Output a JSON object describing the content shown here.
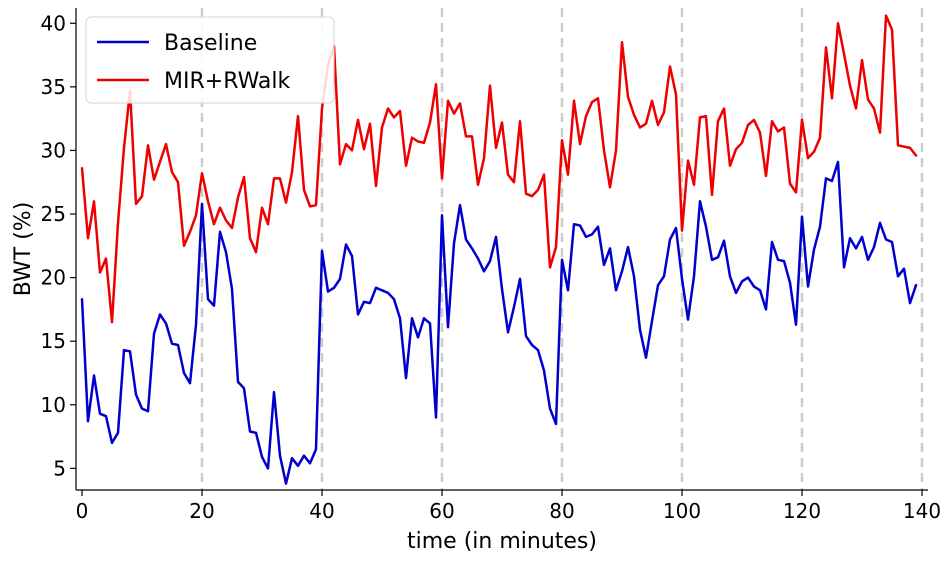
{
  "chart_data": {
    "type": "line",
    "xlabel": "time (in minutes)",
    "ylabel": "BWT (%)",
    "xlim": [
      -1,
      141
    ],
    "ylim": [
      3.3,
      41.2
    ],
    "xticks": [
      0,
      20,
      40,
      60,
      80,
      100,
      120,
      140
    ],
    "yticks": [
      5,
      10,
      15,
      20,
      25,
      30,
      35,
      40
    ],
    "vlines": [
      20,
      40,
      60,
      80,
      100,
      120,
      140
    ],
    "vline_color": "#cccccc",
    "legend": {
      "placement": "top-left"
    },
    "grid": false,
    "x": [
      0,
      1,
      2,
      3,
      4,
      5,
      6,
      7,
      8,
      9,
      10,
      11,
      12,
      13,
      14,
      15,
      16,
      17,
      18,
      19,
      20,
      21,
      22,
      23,
      24,
      25,
      26,
      27,
      28,
      29,
      30,
      31,
      32,
      33,
      34,
      35,
      36,
      37,
      38,
      39,
      40,
      41,
      42,
      43,
      44,
      45,
      46,
      47,
      48,
      49,
      50,
      51,
      52,
      53,
      54,
      55,
      56,
      57,
      58,
      59,
      60,
      61,
      62,
      63,
      64,
      65,
      66,
      67,
      68,
      69,
      70,
      71,
      72,
      73,
      74,
      75,
      76,
      77,
      78,
      79,
      80,
      81,
      82,
      83,
      84,
      85,
      86,
      87,
      88,
      89,
      90,
      91,
      92,
      93,
      94,
      95,
      96,
      97,
      98,
      99,
      100,
      101,
      102,
      103,
      104,
      105,
      106,
      107,
      108,
      109,
      110,
      111,
      112,
      113,
      114,
      115,
      116,
      117,
      118,
      119,
      120,
      121,
      122,
      123,
      124,
      125,
      126,
      127,
      128,
      129,
      130,
      131,
      132,
      133,
      134,
      135,
      136,
      137,
      138,
      139
    ],
    "series": [
      {
        "name": "Baseline",
        "color": "#0000cc",
        "values": [
          18.3,
          8.7,
          12.3,
          9.3,
          9.1,
          7.0,
          7.8,
          14.3,
          14.2,
          10.8,
          9.7,
          9.5,
          15.6,
          17.1,
          16.4,
          14.8,
          14.7,
          12.5,
          11.7,
          16.3,
          25.8,
          18.3,
          17.8,
          23.6,
          22.0,
          19.1,
          11.8,
          11.3,
          7.9,
          7.8,
          5.9,
          5.0,
          11.0,
          6.0,
          3.8,
          5.8,
          5.2,
          6.0,
          5.4,
          6.5,
          22.1,
          18.9,
          19.2,
          19.9,
          22.6,
          21.7,
          17.1,
          18.1,
          18.0,
          19.2,
          19.0,
          18.8,
          18.3,
          16.8,
          12.1,
          16.8,
          15.3,
          16.8,
          16.4,
          9.0,
          24.9,
          16.1,
          22.7,
          25.7,
          23.0,
          22.3,
          21.5,
          20.5,
          21.3,
          23.2,
          19.1,
          15.7,
          17.7,
          19.9,
          15.4,
          14.7,
          14.3,
          12.7,
          9.7,
          8.5,
          21.4,
          19.0,
          24.2,
          24.1,
          23.2,
          23.4,
          24.0,
          21.0,
          22.3,
          19.0,
          20.5,
          22.4,
          20.1,
          15.9,
          13.7,
          16.6,
          19.4,
          20.1,
          23.0,
          23.9,
          19.9,
          16.7,
          20.1,
          26.0,
          24.0,
          21.4,
          21.6,
          22.9,
          20.1,
          18.8,
          19.7,
          20.0,
          19.3,
          19.0,
          17.5,
          22.8,
          21.4,
          21.3,
          19.6,
          16.3,
          24.8,
          19.3,
          22.2,
          24.0,
          27.8,
          27.6,
          29.1,
          20.8,
          23.1,
          22.3,
          23.2,
          21.4,
          22.4,
          24.3,
          23.0,
          22.8,
          20.1,
          20.7,
          18.0,
          19.4
        ]
      },
      {
        "name": "MIR+RWalk",
        "color": "#ee0000",
        "values": [
          28.6,
          23.1,
          26.0,
          20.4,
          21.5,
          16.5,
          24.3,
          30.2,
          34.7,
          25.8,
          26.4,
          30.4,
          27.7,
          29.1,
          30.5,
          28.3,
          27.5,
          22.5,
          23.6,
          24.9,
          28.2,
          26.0,
          24.2,
          25.5,
          24.5,
          23.9,
          26.3,
          27.9,
          23.1,
          22.0,
          25.5,
          24.2,
          27.8,
          27.8,
          25.9,
          28.3,
          32.7,
          26.9,
          25.6,
          25.7,
          33.3,
          36.7,
          38.2,
          28.9,
          30.5,
          30.0,
          32.4,
          30.1,
          32.1,
          27.2,
          31.8,
          33.3,
          32.6,
          33.1,
          28.8,
          31.0,
          30.7,
          30.6,
          32.2,
          35.2,
          27.8,
          33.9,
          32.9,
          33.7,
          31.1,
          31.1,
          27.3,
          29.4,
          35.1,
          30.2,
          32.2,
          28.1,
          27.5,
          32.3,
          26.6,
          26.4,
          26.9,
          28.1,
          20.8,
          22.4,
          30.8,
          28.1,
          33.9,
          30.5,
          32.7,
          33.8,
          34.1,
          30.0,
          27.1,
          30.0,
          38.5,
          34.2,
          32.8,
          31.8,
          32.1,
          33.9,
          32.0,
          33.0,
          36.6,
          34.4,
          23.7,
          29.2,
          27.3,
          32.6,
          32.7,
          26.5,
          32.3,
          33.3,
          28.8,
          30.1,
          30.6,
          32.0,
          32.4,
          31.4,
          28.0,
          32.3,
          31.5,
          31.8,
          27.4,
          26.7,
          32.4,
          29.4,
          29.9,
          31.0,
          38.1,
          34.1,
          40.0,
          37.6,
          35.1,
          33.3,
          37.1,
          34.0,
          33.3,
          31.4,
          40.6,
          39.5,
          30.4,
          30.3,
          30.2,
          29.6
        ]
      }
    ]
  }
}
